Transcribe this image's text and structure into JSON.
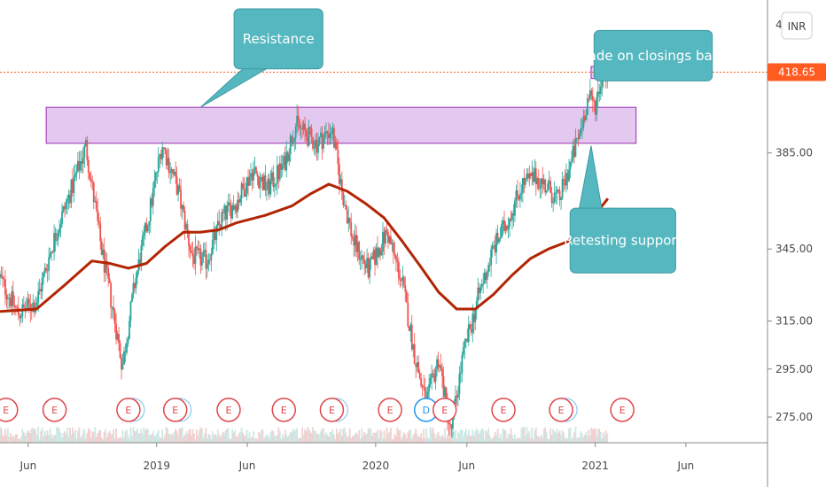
{
  "chart_data": {
    "type": "candlestick",
    "currency": "INR",
    "y_axis": {
      "ticks": [
        275,
        295,
        315,
        345,
        385
      ],
      "tick_labels": [
        "275.00",
        "295.00",
        "315.00",
        "345.00",
        "385.00"
      ],
      "top_partial_label": "4",
      "ylim": [
        268,
        445
      ]
    },
    "x_axis": {
      "ticks": [
        {
          "label": "Jun",
          "date": "2018-06-01"
        },
        {
          "label": "2019",
          "date": "2019-01-01"
        },
        {
          "label": "Jun",
          "date": "2019-06-01"
        },
        {
          "label": "2020",
          "date": "2020-01-01"
        },
        {
          "label": "Jun",
          "date": "2020-06-01"
        },
        {
          "label": "2021",
          "date": "2021-01-01"
        },
        {
          "label": "Jun",
          "date": "2021-06-01"
        }
      ],
      "xlim": [
        "2018-04-15",
        "2021-10-15"
      ]
    },
    "last_price": {
      "value": 418.65,
      "label": "418.65",
      "color": "#ff5a1f"
    },
    "price_path": [
      [
        "2018-04-15",
        333
      ],
      [
        "2018-05-15",
        318
      ],
      [
        "2018-06-15",
        323
      ],
      [
        "2018-07-15",
        350
      ],
      [
        "2018-08-15",
        372
      ],
      [
        "2018-09-05",
        388
      ],
      [
        "2018-10-01",
        345
      ],
      [
        "2018-10-20",
        320
      ],
      [
        "2018-11-05",
        296
      ],
      [
        "2018-11-25",
        330
      ],
      [
        "2018-12-20",
        360
      ],
      [
        "2019-01-10",
        389
      ],
      [
        "2019-02-05",
        370
      ],
      [
        "2019-03-01",
        342
      ],
      [
        "2019-03-25",
        340
      ],
      [
        "2019-04-20",
        358
      ],
      [
        "2019-05-15",
        365
      ],
      [
        "2019-06-10",
        378
      ],
      [
        "2019-07-05",
        370
      ],
      [
        "2019-08-01",
        380
      ],
      [
        "2019-08-20",
        397
      ],
      [
        "2019-09-10",
        392
      ],
      [
        "2019-09-25",
        389
      ],
      [
        "2019-10-20",
        395
      ],
      [
        "2019-11-05",
        370
      ],
      [
        "2019-11-25",
        348
      ],
      [
        "2019-12-20",
        336
      ],
      [
        "2020-01-20",
        352
      ],
      [
        "2020-02-15",
        330
      ],
      [
        "2020-03-05",
        302
      ],
      [
        "2020-03-25",
        280
      ],
      [
        "2020-04-15",
        300
      ],
      [
        "2020-05-05",
        268
      ],
      [
        "2020-05-25",
        300
      ],
      [
        "2020-06-20",
        325
      ],
      [
        "2020-07-15",
        345
      ],
      [
        "2020-08-10",
        358
      ],
      [
        "2020-09-01",
        372
      ],
      [
        "2020-09-25",
        375
      ],
      [
        "2020-10-15",
        370
      ],
      [
        "2020-11-01",
        365
      ],
      [
        "2020-11-20",
        380
      ],
      [
        "2020-12-05",
        392
      ],
      [
        "2020-12-20",
        408
      ],
      [
        "2021-01-01",
        405
      ],
      [
        "2021-01-15",
        420
      ],
      [
        "2021-01-22",
        418.65
      ]
    ],
    "moving_average": {
      "color": "#b22504",
      "points": [
        [
          "2018-04-15",
          319
        ],
        [
          "2018-06-15",
          320
        ],
        [
          "2018-08-01",
          330
        ],
        [
          "2018-09-15",
          340
        ],
        [
          "2018-10-15",
          339
        ],
        [
          "2018-11-15",
          337
        ],
        [
          "2018-12-15",
          339
        ],
        [
          "2019-01-15",
          346
        ],
        [
          "2019-02-15",
          352
        ],
        [
          "2019-03-15",
          352
        ],
        [
          "2019-04-15",
          353
        ],
        [
          "2019-05-15",
          356
        ],
        [
          "2019-07-01",
          359
        ],
        [
          "2019-08-15",
          363
        ],
        [
          "2019-09-15",
          368
        ],
        [
          "2019-10-15",
          372
        ],
        [
          "2019-11-15",
          369
        ],
        [
          "2019-12-15",
          364
        ],
        [
          "2020-01-15",
          358
        ],
        [
          "2020-02-15",
          348
        ],
        [
          "2020-03-15",
          338
        ],
        [
          "2020-04-15",
          327
        ],
        [
          "2020-05-15",
          320
        ],
        [
          "2020-06-15",
          320
        ],
        [
          "2020-07-15",
          326
        ],
        [
          "2020-08-15",
          334
        ],
        [
          "2020-09-15",
          341
        ],
        [
          "2020-10-15",
          345
        ],
        [
          "2020-11-15",
          348
        ],
        [
          "2020-12-15",
          354
        ],
        [
          "2021-01-22",
          366
        ]
      ]
    },
    "zones": [
      {
        "name": "resistance-zone",
        "from": "2018-07-01",
        "to": "2021-03-10",
        "low": 389,
        "high": 404,
        "fill": "#e3c8ef",
        "stroke": "#9b2fb0"
      },
      {
        "name": "breakout-box",
        "from": "2020-12-25",
        "to": "2021-02-01",
        "low": 416,
        "high": 421,
        "fill": "#e3c8ef",
        "stroke": "#9b2fb0"
      }
    ],
    "annotations": [
      {
        "text": "Resistance",
        "color": "#55b7bf",
        "box": [
          "2019-05-10",
          "2019-10-05",
          445,
          420
        ],
        "pointer": [
          "2019-03-15",
          404
        ]
      },
      {
        "text": "Trade on closings basis",
        "color": "#55b7bf",
        "box": [
          "2020-12-30",
          "2021-07-15",
          436,
          415
        ],
        "pointer": [
          "2021-01-20",
          419
        ]
      },
      {
        "text": "Retesting support",
        "color": "#55b7bf",
        "box": [
          "2020-11-20",
          "2021-05-15",
          362,
          335
        ],
        "pointer": [
          "2020-12-25",
          388
        ]
      }
    ],
    "events": [
      {
        "date": "2018-04-25",
        "letter": "E"
      },
      {
        "date": "2018-07-15",
        "letter": "E"
      },
      {
        "date": "2018-11-15",
        "letter": "E",
        "stacked": true
      },
      {
        "date": "2019-02-01",
        "letter": "E",
        "stacked": true
      },
      {
        "date": "2019-05-01",
        "letter": "E"
      },
      {
        "date": "2019-08-01",
        "letter": "E"
      },
      {
        "date": "2019-10-20",
        "letter": "E",
        "stacked": true
      },
      {
        "date": "2020-01-25",
        "letter": "E"
      },
      {
        "date": "2020-03-25",
        "letter": "D"
      },
      {
        "date": "2020-04-25",
        "letter": "E"
      },
      {
        "date": "2020-08-01",
        "letter": "E"
      },
      {
        "date": "2020-11-05",
        "letter": "E",
        "stacked": true
      },
      {
        "date": "2021-02-15",
        "letter": "E"
      }
    ],
    "colors": {
      "up": "#26a69a",
      "down": "#ef5350",
      "event_e": "#e0464a",
      "event_d": "#2196f3",
      "grid_axis": "#888888"
    }
  }
}
